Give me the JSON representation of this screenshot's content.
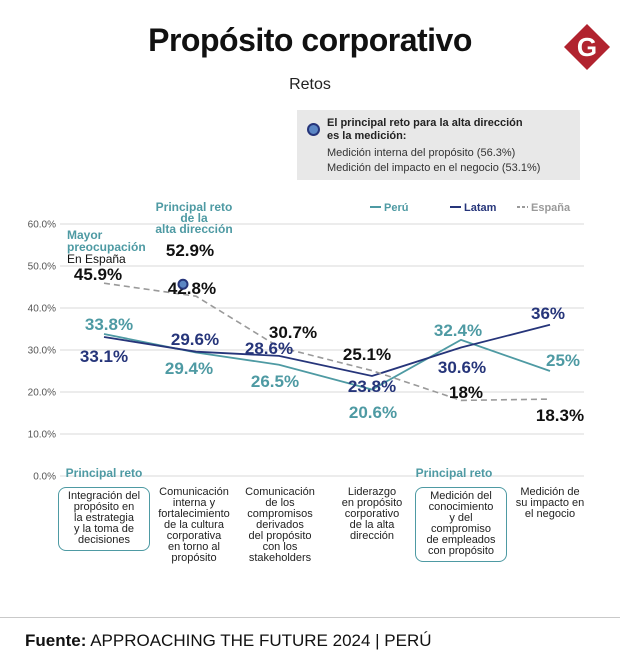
{
  "header": {
    "title": "Propósito corporativo",
    "subtitle": "Retos"
  },
  "logo": {
    "letter": "G",
    "color": "#b1232f"
  },
  "infobox": {
    "heading": "El principal reto para la alta dirección es la medición:",
    "line1": "Medición interna del propósito (56.3%)",
    "line2": "Medición del impacto en el negocio (53.1%)"
  },
  "annotations": {
    "mayor_line1": "Mayor",
    "mayor_line2": "preocupación",
    "en_espana": "En España",
    "principal_reto_direccion": [
      "Principal reto",
      "de la",
      "alta dirección"
    ],
    "highlight_value": "52.9%",
    "principal_reto_left": "Principal reto",
    "principal_reto_right": "Principal reto"
  },
  "footer": {
    "label": "Fuente:",
    "source": "APPROACHING THE FUTURE 2024 | PERÚ"
  },
  "colors": {
    "peru": "#4e9aa3",
    "latam": "#26357a",
    "espana": "#9a9a9a",
    "grid": "#d9d9d9",
    "label_dark": "#111111"
  },
  "chart_data": {
    "type": "line",
    "title": "Retos",
    "ylim": [
      0,
      60
    ],
    "yticks": [
      0,
      10,
      20,
      30,
      40,
      50,
      60
    ],
    "ytick_labels": [
      "0.0%",
      "10.0%",
      "20.0%",
      "30.0%",
      "40.0%",
      "50.0%",
      "60.0%"
    ],
    "grid": true,
    "legend_position": "top-right",
    "categories": [
      "Integración del propósito en la estrategia y la toma de decisiones",
      "Comunicación interna y fortalecimiento de la cultura corporativa en torno al propósito",
      "Comunicación de los compromisos derivados del propósito con los stakeholders",
      "Liderazgo en propósito corporativo de la alta dirección",
      "Medición del conocimiento y del compromiso de empleados con propósito",
      "Medición de su impacto en el negocio"
    ],
    "category_lines": [
      [
        "Integración del",
        "propósito en",
        "la estrategia",
        "y la toma de",
        "decisiones"
      ],
      [
        "Comunicación",
        "interna y",
        "fortalecimiento",
        "de la cultura",
        "corporativa",
        "en torno al",
        "propósito"
      ],
      [
        "Comunicación",
        "de los",
        "compromisos",
        "derivados",
        "del propósito",
        "con los",
        "stakeholders"
      ],
      [
        "Liderazgo",
        "en propósito",
        "corporativo",
        "de la alta",
        "dirección"
      ],
      [
        "Medición del",
        "conocimiento",
        "y del",
        "compromiso",
        "de empleados",
        "con propósito"
      ],
      [
        "Medición de",
        "su impacto en",
        "el negocio"
      ]
    ],
    "series": [
      {
        "name": "Perú",
        "style": "solid",
        "values": [
          33.8,
          29.4,
          26.5,
          20.6,
          32.4,
          25.0
        ],
        "labels": [
          "33.8%",
          "29.4%",
          "26.5%",
          "20.6%",
          "32.4%",
          "25%"
        ]
      },
      {
        "name": "Latam",
        "style": "solid",
        "values": [
          33.1,
          29.6,
          28.6,
          23.8,
          30.6,
          36.0
        ],
        "labels": [
          "33.1%",
          "29.6%",
          "28.6%",
          "23.8%",
          "30.6%",
          "36%"
        ]
      },
      {
        "name": "España",
        "style": "dashed",
        "values": [
          45.9,
          42.8,
          30.7,
          25.1,
          18.0,
          18.3
        ],
        "labels": [
          "45.9%",
          "42.8%",
          "30.7%",
          "25.1%",
          "18%",
          "18.3%"
        ]
      }
    ],
    "highlight_point": {
      "series": "España",
      "category_index": 1
    }
  }
}
